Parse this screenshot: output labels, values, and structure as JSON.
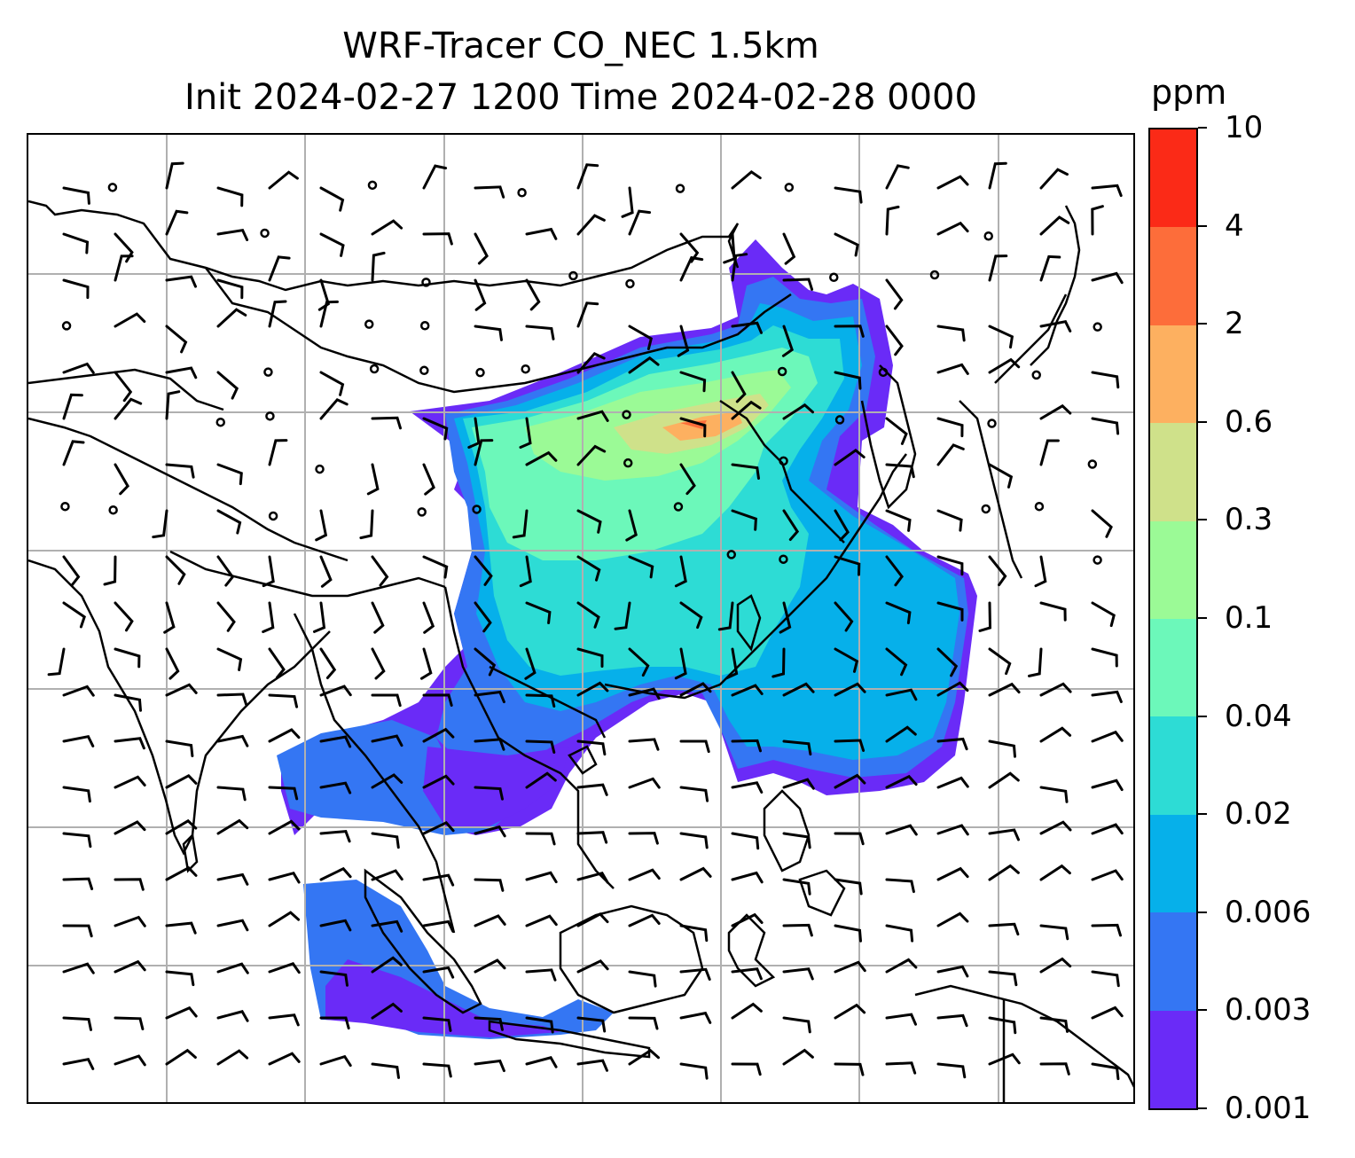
{
  "title": {
    "line1": "WRF-Tracer CO_NEC 1.5km",
    "line2": "Init 2024-02-27 1200 Time 2024-02-28 0000"
  },
  "colorbar": {
    "unit": "ppm",
    "ticks": [
      "0.001",
      "0.003",
      "0.006",
      "0.02",
      "0.04",
      "0.1",
      "0.3",
      "0.6",
      "2",
      "4",
      "10"
    ],
    "colors": [
      "#6a2bf7",
      "#3476f3",
      "#06b0ea",
      "#2ddcd5",
      "#6cf8ba",
      "#9bfa96",
      "#cfe18a",
      "#fdb060",
      "#fd6d3a",
      "#fb2a17"
    ]
  },
  "map": {
    "gridlines": "on",
    "coastline_color": "#000000",
    "gridline_color": "#b0b0b0"
  }
}
